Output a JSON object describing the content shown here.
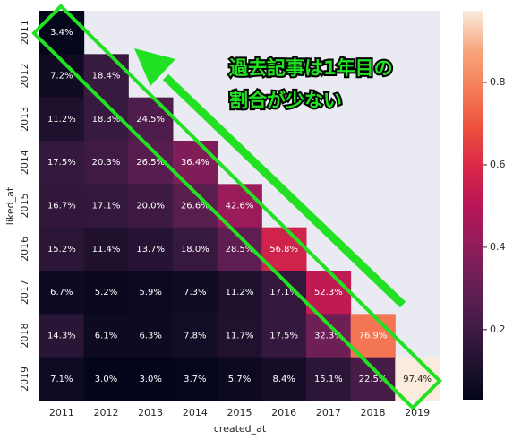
{
  "chart_data": {
    "type": "heatmap",
    "xlabel": "created_at",
    "ylabel": "liked_at",
    "categories": [
      "2011",
      "2012",
      "2013",
      "2014",
      "2015",
      "2016",
      "2017",
      "2018",
      "2019"
    ],
    "rows": [
      "2011",
      "2012",
      "2013",
      "2014",
      "2015",
      "2016",
      "2017",
      "2018",
      "2019"
    ],
    "values": [
      [
        0.034,
        null,
        null,
        null,
        null,
        null,
        null,
        null,
        null
      ],
      [
        0.072,
        0.184,
        null,
        null,
        null,
        null,
        null,
        null,
        null
      ],
      [
        0.112,
        0.183,
        0.245,
        null,
        null,
        null,
        null,
        null,
        null
      ],
      [
        0.175,
        0.203,
        0.265,
        0.364,
        null,
        null,
        null,
        null,
        null
      ],
      [
        0.167,
        0.171,
        0.2,
        0.266,
        0.426,
        null,
        null,
        null,
        null
      ],
      [
        0.152,
        0.114,
        0.137,
        0.18,
        0.285,
        0.568,
        null,
        null,
        null
      ],
      [
        0.067,
        0.052,
        0.059,
        0.073,
        0.112,
        0.171,
        0.523,
        null,
        null
      ],
      [
        0.143,
        0.061,
        0.063,
        0.078,
        0.117,
        0.175,
        0.323,
        0.769,
        null
      ],
      [
        0.071,
        0.03,
        0.03,
        0.037,
        0.057,
        0.084,
        0.151,
        0.225,
        0.974
      ]
    ],
    "value_labels": [
      [
        "3.4%",
        null,
        null,
        null,
        null,
        null,
        null,
        null,
        null
      ],
      [
        "7.2%",
        "18.4%",
        null,
        null,
        null,
        null,
        null,
        null,
        null
      ],
      [
        "11.2%",
        "18.3%",
        "24.5%",
        null,
        null,
        null,
        null,
        null,
        null
      ],
      [
        "17.5%",
        "20.3%",
        "26.5%",
        "36.4%",
        null,
        null,
        null,
        null,
        null
      ],
      [
        "16.7%",
        "17.1%",
        "20.0%",
        "26.6%",
        "42.6%",
        null,
        null,
        null,
        null
      ],
      [
        "15.2%",
        "11.4%",
        "13.7%",
        "18.0%",
        "28.5%",
        "56.8%",
        null,
        null,
        null
      ],
      [
        "6.7%",
        "5.2%",
        "5.9%",
        "7.3%",
        "11.2%",
        "17.1%",
        "52.3%",
        null,
        null
      ],
      [
        "14.3%",
        "6.1%",
        "6.3%",
        "7.8%",
        "11.7%",
        "17.5%",
        "32.3%",
        "76.9%",
        null
      ],
      [
        "7.1%",
        "3.0%",
        "3.0%",
        "3.7%",
        "5.7%",
        "8.4%",
        "15.1%",
        "22.5%",
        "97.4%"
      ]
    ],
    "clim": [
      0.03,
      0.974
    ],
    "cticks": [
      0.2,
      0.4,
      0.6,
      0.8
    ],
    "colormap": [
      "#03051a",
      "#221331",
      "#451c47",
      "#691f55",
      "#921c5b",
      "#b91657",
      "#d92847",
      "#ed513e",
      "#f47d57",
      "#f6a77e",
      "#faebdd"
    ],
    "annotation": [
      "過去記事は1年目の",
      "割合が少ない"
    ]
  }
}
